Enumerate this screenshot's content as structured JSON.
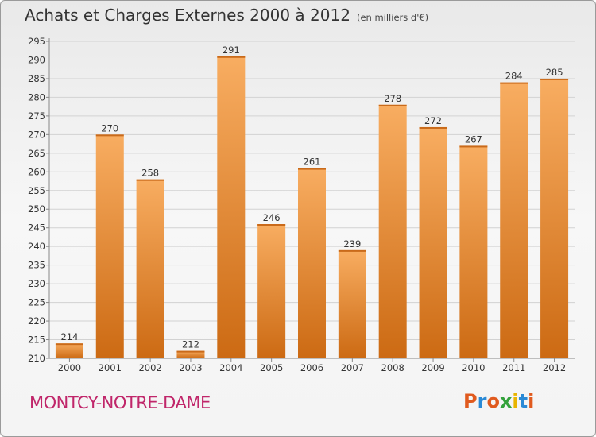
{
  "title": "Achats et Charges Externes 2000 à 2012",
  "unit_note": "(en milliers d'€)",
  "city": "MONTCY-NOTRE-DAME",
  "logo": {
    "text": "Proxiti",
    "colors": [
      "#e05a1e",
      "#2a8ad6",
      "#e05a1e",
      "#34a23c",
      "#e8b400",
      "#2a8ad6",
      "#e05a1e"
    ]
  },
  "colors": {
    "bar_light": "#f8ad61",
    "bar_dark": "#cc6a13",
    "grid": "#d2d2d2"
  },
  "chart_data": {
    "type": "bar",
    "title": "Achats et Charges Externes 2000 à 2012",
    "xlabel": "",
    "ylabel": "",
    "categories": [
      "2000",
      "2001",
      "2002",
      "2003",
      "2004",
      "2005",
      "2006",
      "2007",
      "2008",
      "2009",
      "2010",
      "2011",
      "2012"
    ],
    "values": [
      214,
      270,
      258,
      212,
      291,
      246,
      261,
      239,
      278,
      272,
      267,
      284,
      285
    ],
    "ylim": [
      210,
      295
    ],
    "yticks": [
      210,
      215,
      220,
      225,
      230,
      235,
      240,
      245,
      250,
      255,
      260,
      265,
      270,
      275,
      280,
      285,
      290,
      295
    ],
    "grid": true
  }
}
